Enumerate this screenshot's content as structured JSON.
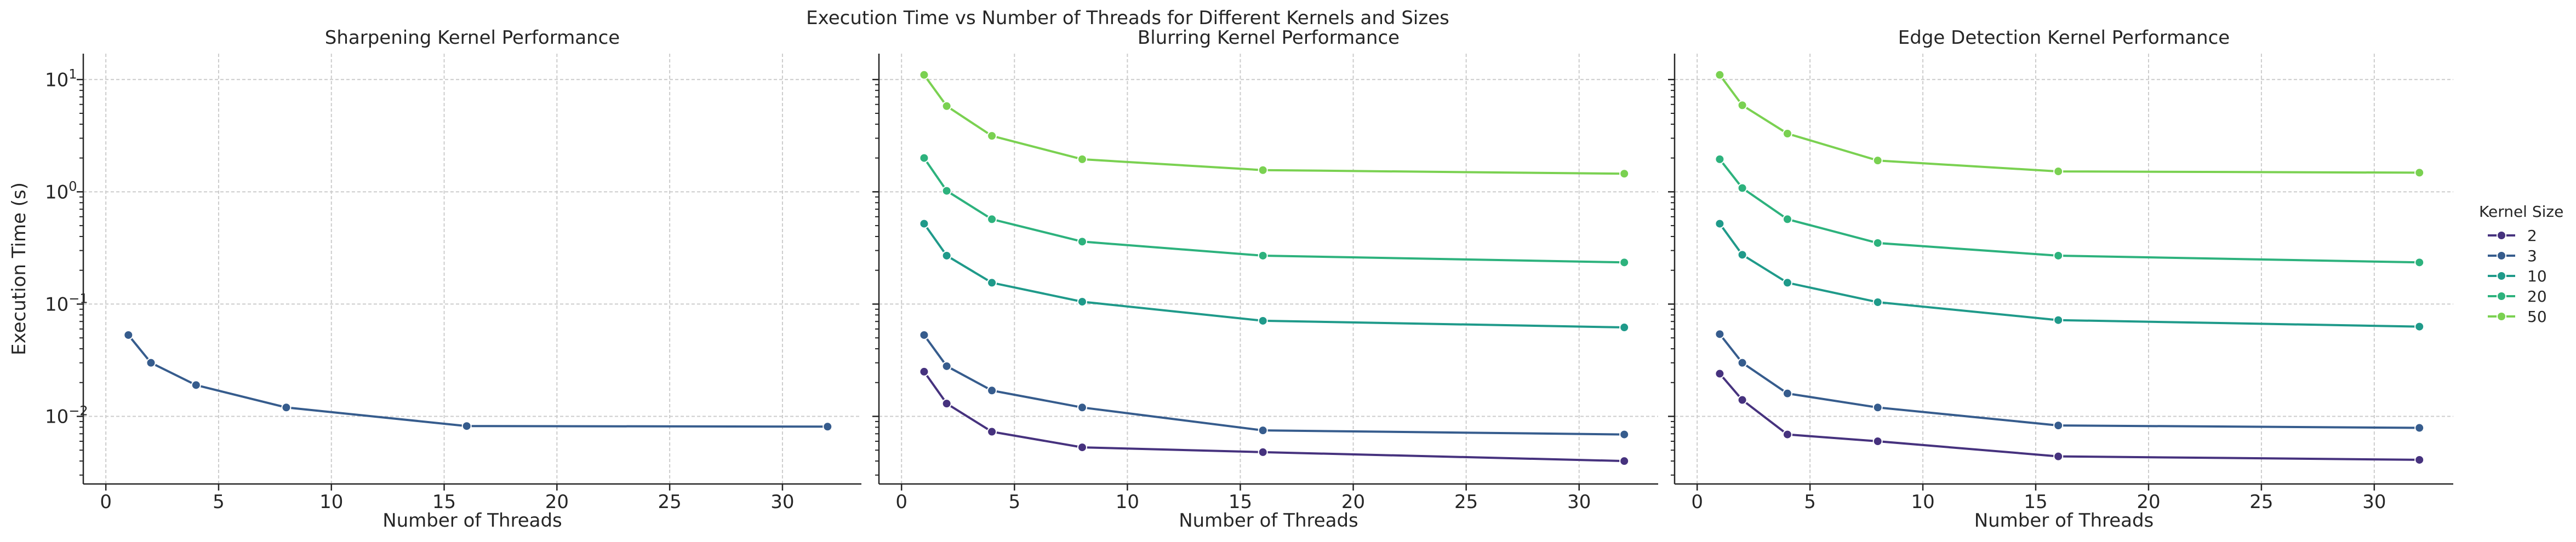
{
  "figure": {
    "suptitle": "Execution Time vs Number of Threads for Different Kernels and Sizes"
  },
  "legend": {
    "title": "Kernel Size",
    "placement": "center-right",
    "entries": [
      {
        "label": "2",
        "color": "#46327e"
      },
      {
        "label": "3",
        "color": "#365c8d"
      },
      {
        "label": "10",
        "color": "#1f9a8a"
      },
      {
        "label": "20",
        "color": "#2db27d"
      },
      {
        "label": "50",
        "color": "#7ad151"
      }
    ]
  },
  "chart_data": [
    {
      "type": "line",
      "title": "Sharpening Kernel Performance",
      "xlabel": "Number of Threads",
      "ylabel": "Execution Time (s)",
      "yscale": "log",
      "xlim": [
        -1,
        33.5
      ],
      "ylim": [
        0.0025,
        17
      ],
      "xticks": [
        0,
        5,
        10,
        15,
        20,
        25,
        30
      ],
      "yticks": [
        0.01,
        0.1,
        1,
        10
      ],
      "ytick_labels": [
        [
          "10",
          "−2"
        ],
        [
          "10",
          "−1"
        ],
        [
          "10",
          "0"
        ],
        [
          "10",
          "1"
        ]
      ],
      "grid": true,
      "x": [
        1,
        2,
        4,
        8,
        16,
        32
      ],
      "series": [
        {
          "name": "3",
          "values": [
            0.053,
            0.03,
            0.019,
            0.012,
            0.0082,
            0.0081
          ]
        }
      ]
    },
    {
      "type": "line",
      "title": "Blurring Kernel Performance",
      "xlabel": "Number of Threads",
      "ylabel": "",
      "yscale": "log",
      "xlim": [
        -1,
        33.5
      ],
      "ylim": [
        0.0025,
        17
      ],
      "xticks": [
        0,
        5,
        10,
        15,
        20,
        25,
        30
      ],
      "yticks": [
        0.01,
        0.1,
        1,
        10
      ],
      "grid": true,
      "x": [
        1,
        2,
        4,
        8,
        16,
        32
      ],
      "series": [
        {
          "name": "2",
          "values": [
            0.025,
            0.013,
            0.0073,
            0.0053,
            0.0048,
            0.004
          ]
        },
        {
          "name": "3",
          "values": [
            0.053,
            0.028,
            0.017,
            0.012,
            0.0075,
            0.0069
          ]
        },
        {
          "name": "10",
          "values": [
            0.52,
            0.27,
            0.155,
            0.105,
            0.071,
            0.062
          ]
        },
        {
          "name": "20",
          "values": [
            2.0,
            1.02,
            0.57,
            0.36,
            0.27,
            0.235
          ]
        },
        {
          "name": "50",
          "values": [
            11.0,
            5.8,
            3.15,
            1.95,
            1.56,
            1.45
          ]
        }
      ]
    },
    {
      "type": "line",
      "title": "Edge Detection Kernel Performance",
      "xlabel": "Number of Threads",
      "ylabel": "",
      "yscale": "log",
      "xlim": [
        -1,
        33.5
      ],
      "ylim": [
        0.0025,
        17
      ],
      "xticks": [
        0,
        5,
        10,
        15,
        20,
        25,
        30
      ],
      "yticks": [
        0.01,
        0.1,
        1,
        10
      ],
      "grid": true,
      "x": [
        1,
        2,
        4,
        8,
        16,
        32
      ],
      "series": [
        {
          "name": "2",
          "values": [
            0.024,
            0.014,
            0.0069,
            0.006,
            0.0044,
            0.0041
          ]
        },
        {
          "name": "3",
          "values": [
            0.054,
            0.03,
            0.016,
            0.012,
            0.0083,
            0.0079
          ]
        },
        {
          "name": "10",
          "values": [
            0.52,
            0.275,
            0.155,
            0.104,
            0.072,
            0.063
          ]
        },
        {
          "name": "20",
          "values": [
            1.95,
            1.08,
            0.57,
            0.35,
            0.27,
            0.235
          ]
        },
        {
          "name": "50",
          "values": [
            11.0,
            5.9,
            3.3,
            1.9,
            1.52,
            1.48
          ]
        }
      ]
    }
  ]
}
